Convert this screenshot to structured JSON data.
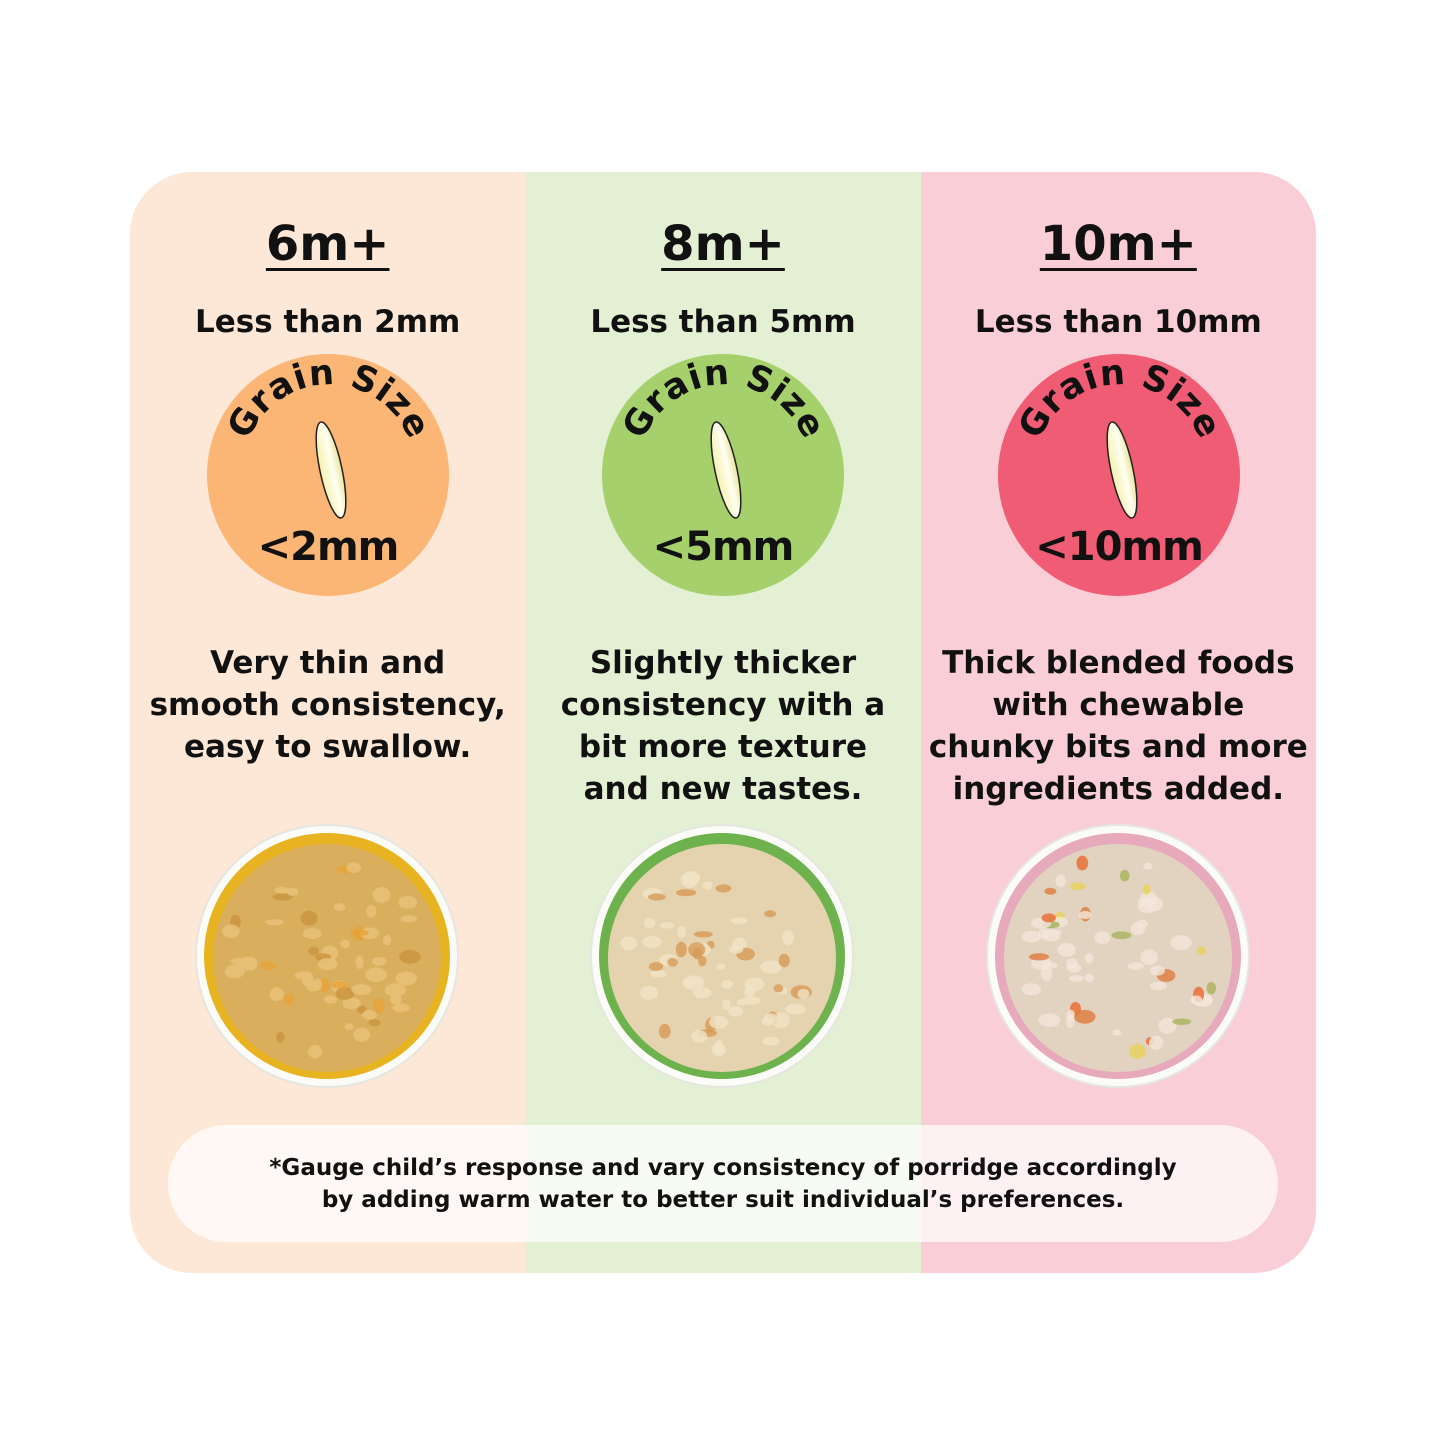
{
  "colors": {
    "col1_bg": "#FDE7D6",
    "col2_bg": "#E3F0D3",
    "col3_bg": "#F9CED6",
    "badge1": "#FBB574",
    "badge2": "#A6D06B",
    "badge3": "#EF5C73"
  },
  "columns": [
    {
      "title": "6m+",
      "subtitle": "Less than 2mm",
      "badge_arc": "Grain Size",
      "badge_size": "<2mm",
      "description": [
        "Very thin and",
        "smooth consistency,",
        "easy to swallow."
      ],
      "bowl": "yellow-bowl-smooth-puree"
    },
    {
      "title": "8m+",
      "subtitle": "Less than 5mm",
      "badge_arc": "Grain Size",
      "badge_size": "<5mm",
      "description": [
        "Slightly thicker",
        "consistency with a",
        "bit more texture",
        "and new tastes."
      ],
      "bowl": "green-bowl-porridge"
    },
    {
      "title": "10m+",
      "subtitle": "Less than 10mm",
      "badge_arc": "Grain Size",
      "badge_size": "<10mm",
      "description": [
        "Thick blended foods",
        "with chewable",
        "chunky bits and more",
        "ingredients added."
      ],
      "bowl": "pink-bowl-chunky-porridge"
    }
  ],
  "footer": {
    "lines": [
      "*Gauge child’s response and vary consistency of porridge accordingly",
      "by adding warm water to better suit individual’s preferences."
    ]
  },
  "icons": {
    "grain": "rice-grain-icon"
  }
}
